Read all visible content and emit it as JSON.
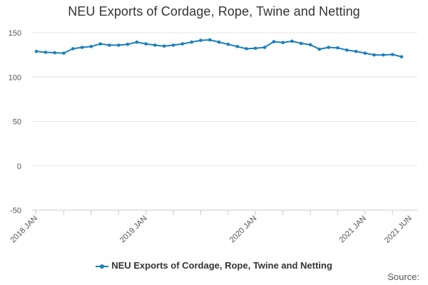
{
  "chart_data": {
    "type": "line",
    "title": "NEU Exports of Cordage, Rope, Twine and Netting",
    "xlabel": "",
    "ylabel": "",
    "ylim": [
      -50,
      150
    ],
    "yticks": [
      -50,
      0,
      50,
      100,
      150
    ],
    "xtick_labels": [
      {
        "label": "2018 JAN",
        "index": 0
      },
      {
        "label": "2019 JAN",
        "index": 12
      },
      {
        "label": "2020 JAN",
        "index": 24
      },
      {
        "label": "2021 JAN",
        "index": 36
      },
      {
        "label": "2021 JUN",
        "index": 41
      }
    ],
    "grid": true,
    "legend_position": "bottom",
    "series": [
      {
        "name": "NEU Exports of Cordage, Rope, Twine and Netting",
        "color": "#1a7fbd",
        "values": [
          129,
          128,
          127.5,
          127,
          132,
          133.5,
          134.5,
          137.5,
          136,
          136,
          137,
          139.5,
          137.5,
          136,
          135,
          136,
          137.5,
          139.5,
          141.5,
          142,
          139.5,
          137,
          134.5,
          132,
          132.5,
          133.5,
          140,
          139,
          140.5,
          138,
          136.5,
          131.5,
          133.5,
          133,
          130.5,
          129,
          127,
          125,
          125,
          125.5,
          123
        ]
      }
    ]
  },
  "source_label": "Source:"
}
